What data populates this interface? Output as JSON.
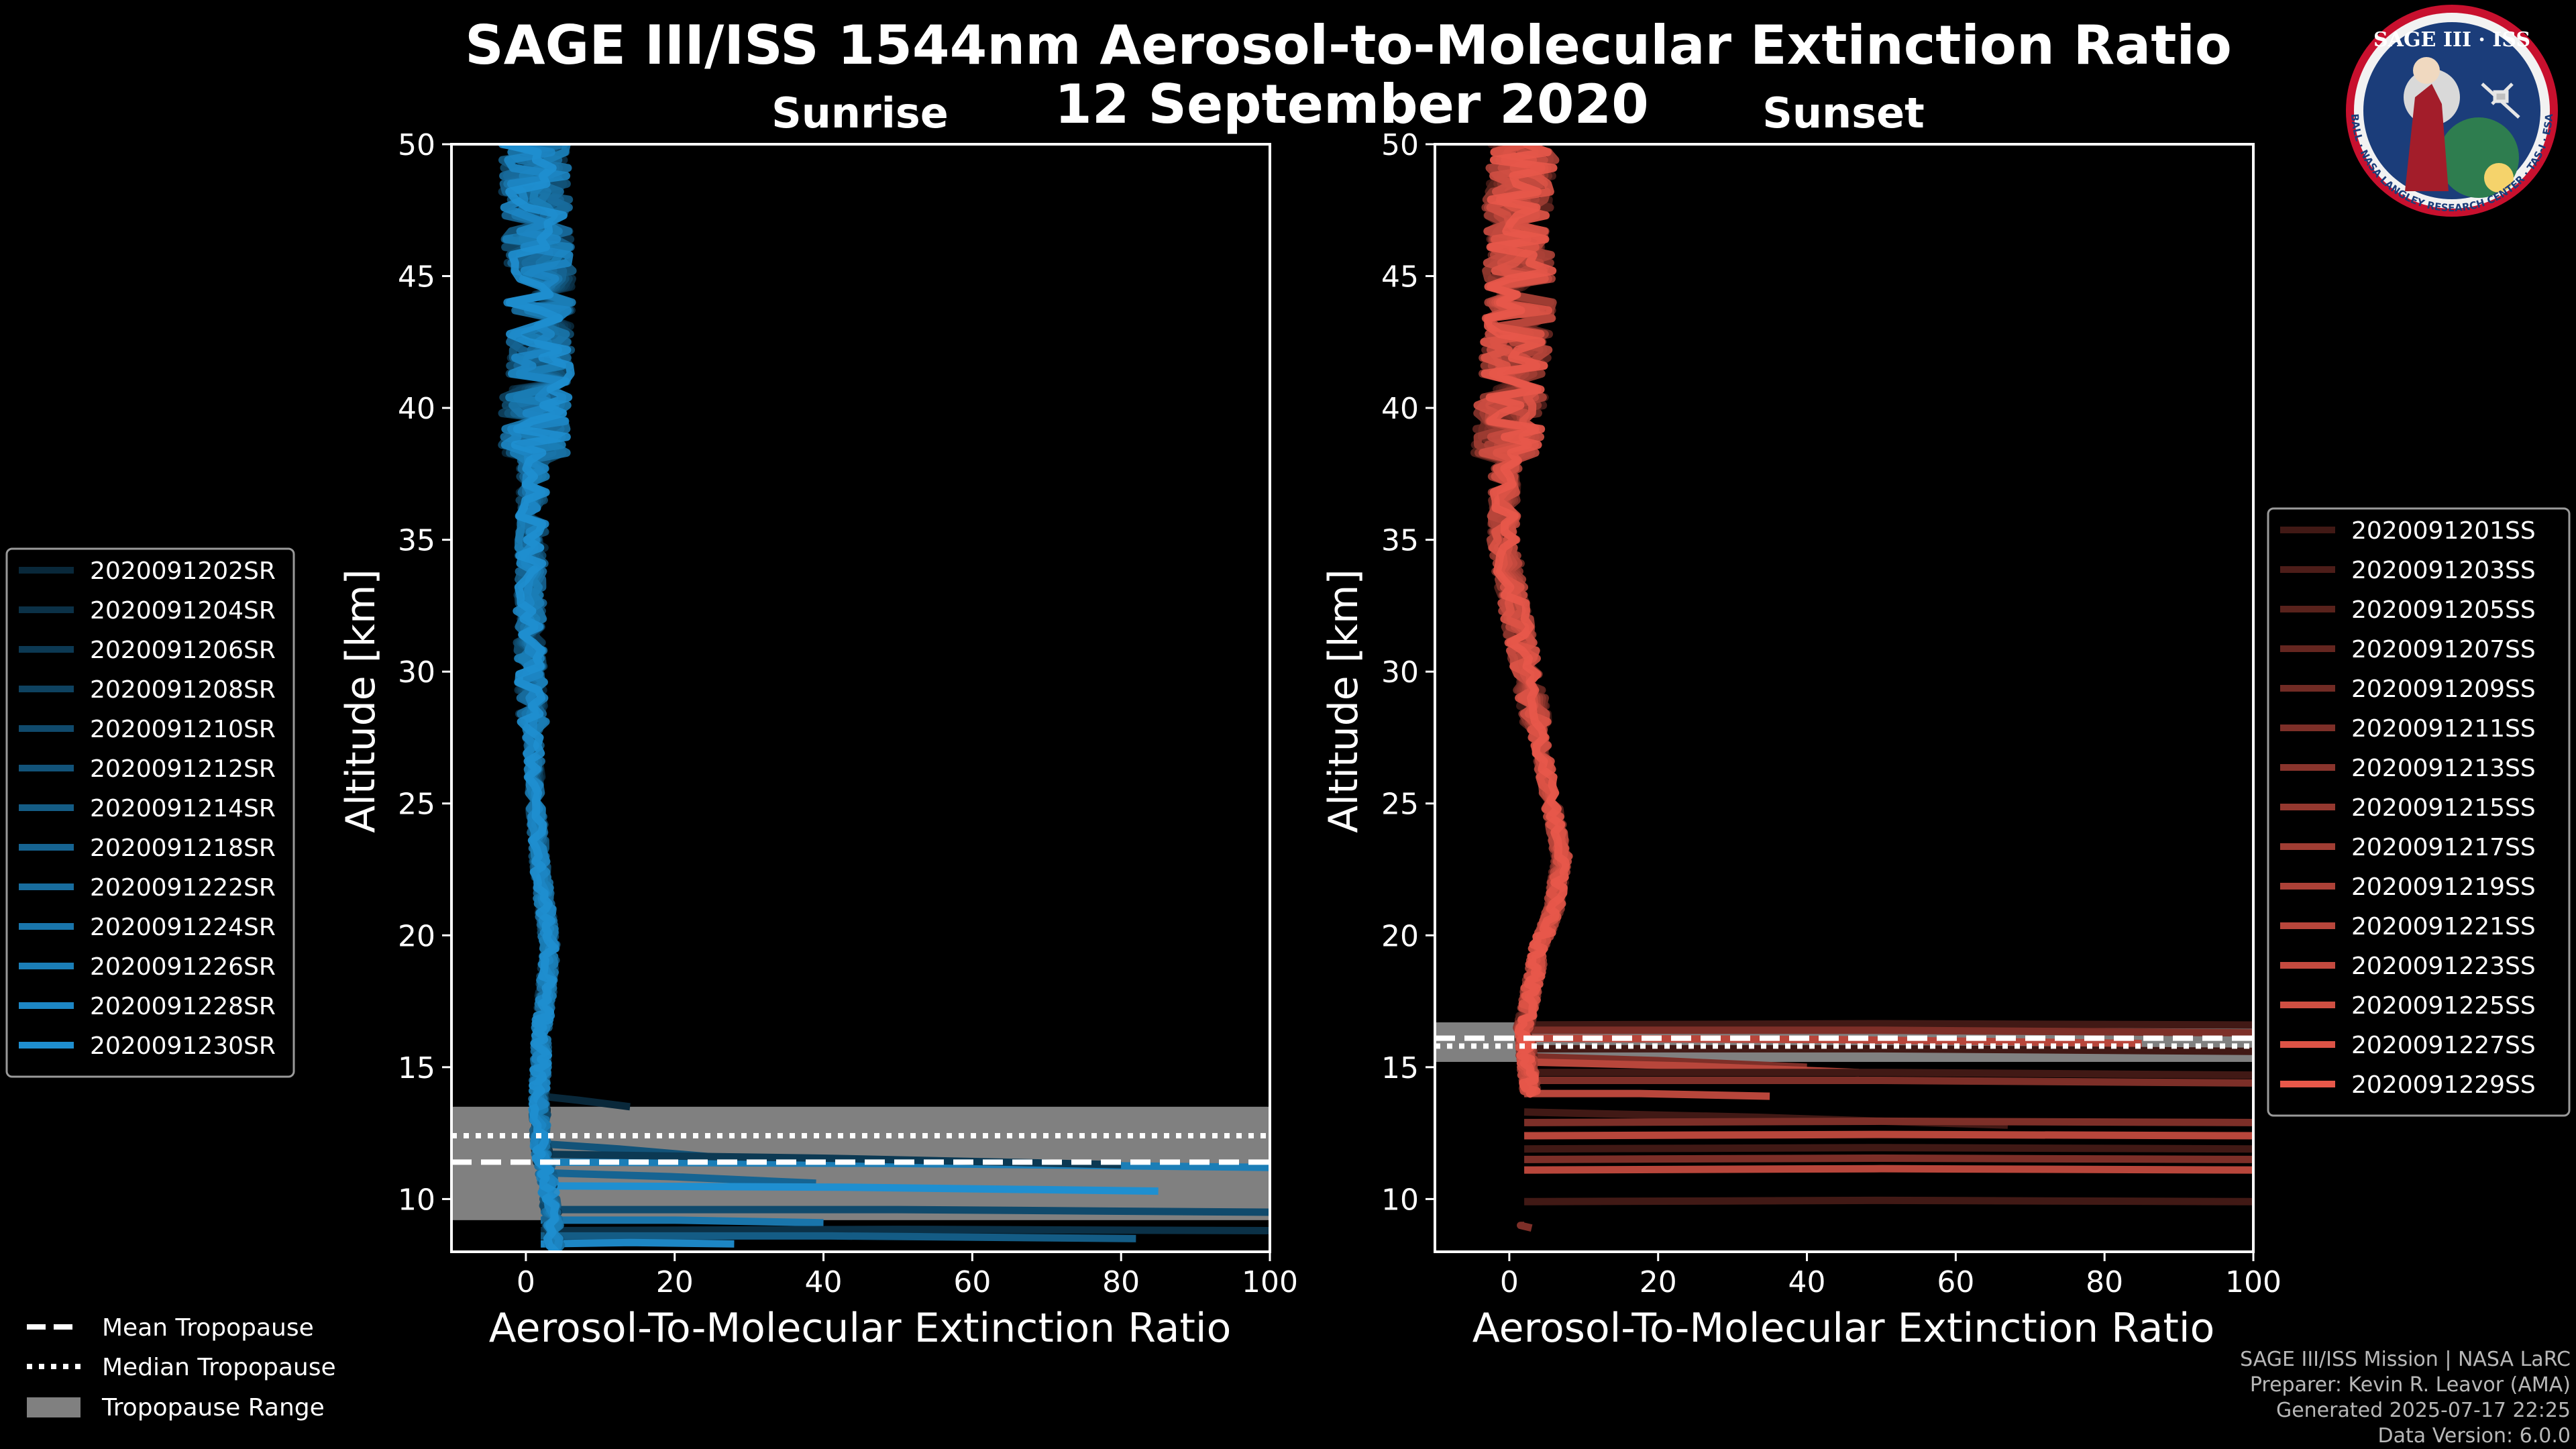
{
  "figure": {
    "title": "SAGE III/ISS 1544nm Aerosol-to-Molecular Extinction Ratio",
    "date": "12 September 2020",
    "credits": [
      "SAGE III/ISS Mission | NASA LaRC",
      "Preparer: Kevin R. Leavor (AMA)",
      "Generated 2025-07-17 22:25",
      "Data Version: 6.0.0"
    ],
    "logo": {
      "title": "SAGE III · ISS",
      "ring_text": "BALL · NASA LANGLEY RESEARCH CENTER · TAS-I · ESA"
    },
    "tropopause_legend": {
      "mean": "Mean Tropopause",
      "median": "Median Tropopause",
      "range": "Tropopause Range"
    },
    "colors": {
      "background": "#000000",
      "sunrise": "#1f8fd0",
      "sunset": "#e8584a",
      "tropopause_range": "#808080"
    }
  },
  "chart_data": [
    {
      "type": "line",
      "title": "Sunrise",
      "xlabel": "Aerosol-To-Molecular Extinction Ratio",
      "ylabel": "Altitude [km]",
      "xlim": [
        -10,
        100
      ],
      "ylim": [
        8,
        50
      ],
      "xticks": [
        0,
        20,
        40,
        60,
        80,
        100
      ],
      "yticks": [
        10,
        15,
        20,
        25,
        30,
        35,
        40,
        45,
        50
      ],
      "series_names": [
        "2020091202SR",
        "2020091204SR",
        "2020091206SR",
        "2020091208SR",
        "2020091210SR",
        "2020091212SR",
        "2020091214SR",
        "2020091218SR",
        "2020091222SR",
        "2020091224SR",
        "2020091226SR",
        "2020091228SR",
        "2020091230SR"
      ],
      "tropopause": {
        "mean": 11.4,
        "median": 12.4,
        "range": [
          9.2,
          13.5
        ]
      },
      "profile_core": [
        [
          1,
          50
        ],
        [
          1.5,
          47
        ],
        [
          2,
          44
        ],
        [
          1.5,
          41
        ],
        [
          1,
          38
        ],
        [
          0.8,
          35
        ],
        [
          0.5,
          32
        ],
        [
          0.8,
          29
        ],
        [
          1.2,
          26
        ],
        [
          1.8,
          23
        ],
        [
          2.6,
          21
        ],
        [
          3.2,
          19.5
        ],
        [
          2.8,
          18
        ],
        [
          2.2,
          16.5
        ],
        [
          2,
          15
        ],
        [
          1.8,
          14
        ],
        [
          2,
          12
        ],
        [
          3,
          10.5
        ],
        [
          4,
          8
        ]
      ],
      "low_excursions": [
        [
          13.9,
          14,
          13.5
        ],
        [
          12.1,
          25,
          11.6
        ],
        [
          11.4,
          100,
          11.2
        ],
        [
          11.7,
          80,
          11.3
        ],
        [
          11,
          39,
          10.6
        ],
        [
          10.5,
          85,
          10.3
        ],
        [
          9.6,
          100,
          9.5
        ],
        [
          9.2,
          40,
          9.1
        ],
        [
          8.8,
          100,
          8.8
        ],
        [
          8.6,
          82,
          8.5
        ],
        [
          8.3,
          28,
          8.3
        ]
      ]
    },
    {
      "type": "line",
      "title": "Sunset",
      "xlabel": "Aerosol-To-Molecular Extinction Ratio",
      "ylabel": "Altitude [km]",
      "xlim": [
        -10,
        100
      ],
      "ylim": [
        8,
        50
      ],
      "xticks": [
        0,
        20,
        40,
        60,
        80,
        100
      ],
      "yticks": [
        10,
        15,
        20,
        25,
        30,
        35,
        40,
        45,
        50
      ],
      "series_names": [
        "2020091201SS",
        "2020091203SS",
        "2020091205SS",
        "2020091207SS",
        "2020091209SS",
        "2020091211SS",
        "2020091213SS",
        "2020091215SS",
        "2020091217SS",
        "2020091219SS",
        "2020091221SS",
        "2020091223SS",
        "2020091225SS",
        "2020091227SS",
        "2020091229SS"
      ],
      "tropopause": {
        "mean": 16.1,
        "median": 15.8,
        "range": [
          15.2,
          16.7
        ]
      },
      "profile_core": [
        [
          2,
          50
        ],
        [
          1,
          47
        ],
        [
          1.5,
          44
        ],
        [
          0.5,
          41
        ],
        [
          -0.5,
          38
        ],
        [
          -0.8,
          35
        ],
        [
          1,
          32
        ],
        [
          3,
          29
        ],
        [
          5,
          26
        ],
        [
          7,
          23
        ],
        [
          6,
          21
        ],
        [
          4,
          19.5
        ],
        [
          3,
          18
        ],
        [
          2,
          16.5
        ],
        [
          2.5,
          15
        ],
        [
          2.8,
          14
        ]
      ],
      "low_excursions": [
        [
          16.6,
          100,
          16.6
        ],
        [
          16.4,
          100,
          16.3
        ],
        [
          16.1,
          85,
          15.9
        ],
        [
          15.7,
          100,
          15.6
        ],
        [
          15.4,
          40,
          15
        ],
        [
          15.2,
          47,
          14.8
        ],
        [
          14.8,
          100,
          14.7
        ],
        [
          14.5,
          100,
          14.4
        ],
        [
          14,
          35,
          13.9
        ],
        [
          13.3,
          67,
          12.8
        ],
        [
          12.9,
          100,
          12.9
        ],
        [
          12.4,
          100,
          12.4
        ],
        [
          11.9,
          100,
          11.9
        ],
        [
          11.5,
          100,
          11.5
        ],
        [
          11.1,
          100,
          11.1
        ],
        [
          9.9,
          100,
          9.9
        ],
        [
          9,
          3,
          8.9
        ]
      ]
    }
  ]
}
